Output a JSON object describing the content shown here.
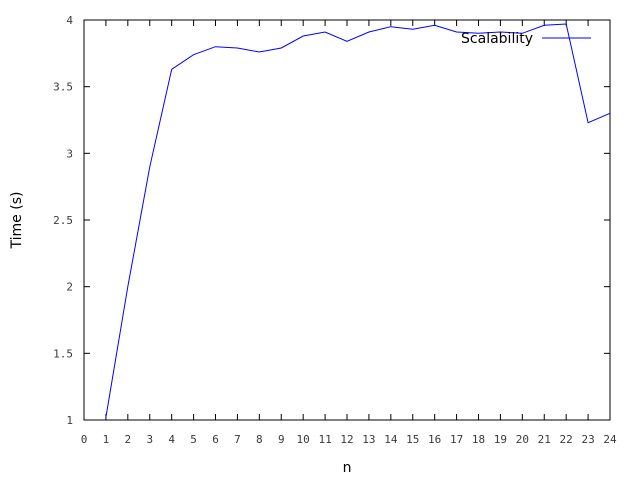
{
  "chart_data": {
    "type": "line",
    "title": "",
    "xlabel": "n",
    "ylabel": "Time (s)",
    "xlim": [
      0,
      24
    ],
    "ylim": [
      1,
      4
    ],
    "x_ticks": [
      0,
      1,
      2,
      3,
      4,
      5,
      6,
      7,
      8,
      9,
      10,
      11,
      12,
      13,
      14,
      15,
      16,
      17,
      18,
      19,
      20,
      21,
      22,
      23,
      24
    ],
    "x_tick_labels": [
      "0",
      "1",
      "2",
      "3",
      "4",
      "5",
      "6",
      "7",
      "8",
      "9",
      "10",
      "11",
      "12",
      "13",
      "14",
      "15",
      "16",
      "17",
      "18",
      "19",
      "20",
      "21",
      "22",
      "23",
      "24"
    ],
    "y_ticks": [
      1,
      1.5,
      2,
      2.5,
      3,
      3.5,
      4
    ],
    "y_tick_labels": [
      "1",
      "1.5",
      "2",
      "2.5",
      "3",
      "3.5",
      "4"
    ],
    "grid": false,
    "legend_position": "top-right",
    "series": [
      {
        "name": "Scalability",
        "color": "#0000ff",
        "x": [
          1,
          2,
          3,
          4,
          5,
          6,
          7,
          8,
          9,
          10,
          11,
          12,
          13,
          14,
          15,
          16,
          17,
          18,
          19,
          20,
          21,
          22,
          23,
          24
        ],
        "y": [
          1.02,
          2.0,
          2.9,
          3.63,
          3.74,
          3.8,
          3.79,
          3.76,
          3.79,
          3.88,
          3.91,
          3.84,
          3.91,
          3.95,
          3.93,
          3.96,
          3.91,
          3.9,
          3.91,
          3.9,
          3.96,
          3.97,
          3.23,
          3.3
        ]
      }
    ]
  }
}
